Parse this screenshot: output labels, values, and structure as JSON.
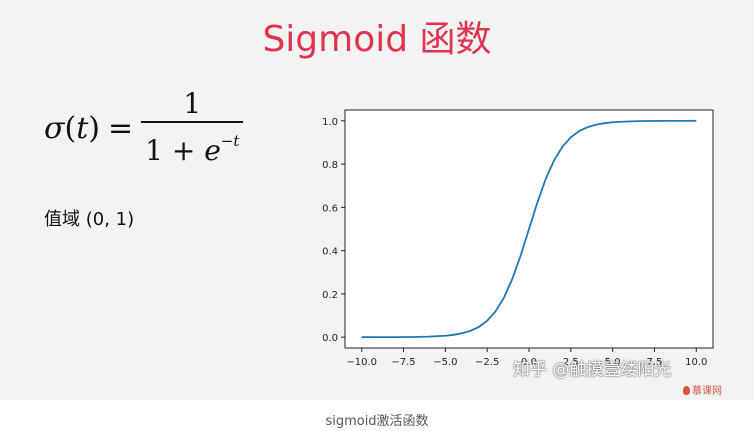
{
  "slide": {
    "title": "Sigmoid 函数",
    "formula": {
      "lhs_func": "σ",
      "lhs_arg": "t",
      "equals": "=",
      "numerator": "1",
      "denominator_base": "1 + ",
      "denominator_e": "e",
      "denominator_exp": "−t"
    },
    "range_label": "值域 (0, 1)",
    "watermark": "知乎 @触摸壹缕阳光",
    "brand": "慕课网"
  },
  "caption": "sigmoid激活函数",
  "colors": {
    "title": "#e0334f",
    "curve": "#1f77b4",
    "slide_bg": "#f3f3f3"
  },
  "chart_data": {
    "type": "line",
    "function": "sigmoid",
    "x": [
      -10.0,
      -9.0,
      -8.0,
      -7.0,
      -6.0,
      -5.0,
      -4.5,
      -4.0,
      -3.5,
      -3.0,
      -2.5,
      -2.0,
      -1.5,
      -1.0,
      -0.5,
      0.0,
      0.5,
      1.0,
      1.5,
      2.0,
      2.5,
      3.0,
      3.5,
      4.0,
      4.5,
      5.0,
      6.0,
      7.0,
      8.0,
      9.0,
      10.0
    ],
    "y": [
      4.54e-05,
      0.000123,
      0.000335,
      0.000911,
      0.00247,
      0.00669,
      0.011,
      0.018,
      0.0293,
      0.0474,
      0.0759,
      0.1192,
      0.1824,
      0.2689,
      0.3775,
      0.5,
      0.6225,
      0.7311,
      0.8176,
      0.8808,
      0.9241,
      0.9526,
      0.9707,
      0.982,
      0.989,
      0.9933,
      0.9975,
      0.9991,
      0.9997,
      0.9999,
      1.0
    ],
    "xlim": [
      -11.0,
      11.0
    ],
    "ylim": [
      -0.05,
      1.05
    ],
    "xticks": [
      -10.0,
      -7.5,
      -5.0,
      -2.5,
      0.0,
      2.5,
      5.0,
      7.5,
      10.0
    ],
    "xtick_labels": [
      "−10.0",
      "−7.5",
      "−5.0",
      "−2.5",
      "0.0",
      "2.5",
      "5.0",
      "7.5",
      "10.0"
    ],
    "yticks": [
      0.0,
      0.2,
      0.4,
      0.6,
      0.8,
      1.0
    ],
    "ytick_labels": [
      "0.0",
      "0.2",
      "0.4",
      "0.6",
      "0.8",
      "1.0"
    ],
    "title": "",
    "xlabel": "",
    "ylabel": "",
    "grid": false,
    "legend": "none"
  }
}
